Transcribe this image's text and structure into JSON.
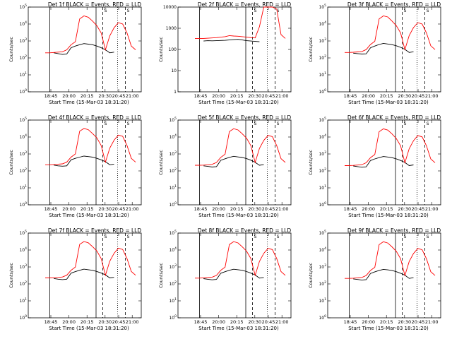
{
  "chart_data": [
    {
      "type": "line",
      "title": "Det 1f BLACK = Events, RED = LLD",
      "xlabel": "Start Time (15-Mar-03 18:31:20)",
      "ylabel": "Counts/sec",
      "x_ticks": [
        "18:45",
        "20:00",
        "20:15",
        "20:30",
        "20:45",
        "21:00"
      ],
      "y_scale": "log",
      "y_ticks": [
        "10^0",
        "10^1",
        "10^2",
        "10^3",
        "10^4",
        "10^5"
      ],
      "ylim": [
        1,
        100000
      ],
      "marker_labels": [
        "S",
        "S"
      ],
      "series": [
        {
          "name": "BLACK = Events",
          "color": "#000000",
          "values": [
            0,
            0,
            200,
            180,
            160,
            170,
            400,
            500,
            600,
            700,
            650,
            600,
            500,
            400,
            300,
            200,
            220,
            0,
            0,
            0,
            0,
            0
          ]
        },
        {
          "name": "RED = LLD",
          "color": "#ff0000",
          "values": [
            200,
            200,
            210,
            220,
            230,
            300,
            600,
            900,
            20000,
            30000,
            25000,
            15000,
            8000,
            3000,
            300,
            2000,
            6000,
            12000,
            10000,
            3000,
            500,
            300
          ]
        }
      ]
    },
    {
      "type": "line",
      "title": "Det 2f BLACK = Events, RED = LLD",
      "xlabel": "Start Time (15-Mar-03 18:31:20)",
      "ylabel": "Counts/sec",
      "x_ticks": [
        "18:45",
        "20:00",
        "20:15",
        "20:30",
        "20:45",
        "21:00"
      ],
      "y_scale": "log",
      "y_ticks": [
        "1",
        "10",
        "100",
        "1000",
        "10000"
      ],
      "ylim": [
        1,
        10000
      ],
      "marker_labels": [
        "S",
        "S"
      ],
      "series": [
        {
          "name": "BLACK = Events",
          "color": "#000000",
          "values": [
            0,
            0,
            250,
            260,
            255,
            260,
            265,
            270,
            280,
            290,
            300,
            280,
            260,
            250,
            240,
            230,
            0,
            0,
            0,
            0,
            0,
            0
          ]
        },
        {
          "name": "RED = LLD",
          "color": "#ff0000",
          "values": [
            330,
            330,
            330,
            340,
            350,
            360,
            380,
            400,
            450,
            430,
            420,
            400,
            380,
            360,
            350,
            1200,
            10000,
            10000,
            10000,
            8000,
            500,
            330
          ]
        }
      ]
    },
    {
      "type": "line",
      "title": "Det 3f BLACK = Events, RED = LLD",
      "xlabel": "Start Time (15-Mar-03 18:31:20)",
      "ylabel": "Counts/sec",
      "x_ticks": [
        "18:45",
        "20:00",
        "20:15",
        "20:30",
        "20:45",
        "21:00"
      ],
      "y_scale": "log",
      "y_ticks": [
        "10^0",
        "10^1",
        "10^2",
        "10^3",
        "10^4",
        "10^5"
      ],
      "ylim": [
        1,
        100000
      ],
      "marker_labels": [
        "S",
        "S"
      ],
      "series": [
        {
          "name": "BLACK = Events",
          "color": "#000000",
          "values": [
            0,
            0,
            190,
            180,
            170,
            175,
            400,
            500,
            620,
            720,
            660,
            610,
            520,
            420,
            320,
            210,
            230,
            0,
            0,
            0,
            0,
            0
          ]
        },
        {
          "name": "RED = LLD",
          "color": "#ff0000",
          "values": [
            210,
            210,
            215,
            225,
            240,
            310,
            620,
            950,
            20000,
            30000,
            26000,
            15000,
            8000,
            3000,
            310,
            2100,
            6200,
            12000,
            10000,
            3000,
            520,
            310
          ]
        }
      ]
    },
    {
      "type": "line",
      "title": "Det 4f BLACK = Events, RED = LLD",
      "xlabel": "Start Time (15-Mar-03 18:31:20)",
      "ylabel": "Counts/sec",
      "x_ticks": [
        "18:45",
        "20:00",
        "20:15",
        "20:30",
        "20:45",
        "21:00"
      ],
      "y_scale": "log",
      "y_ticks": [
        "10^0",
        "10^1",
        "10^2",
        "10^3",
        "10^4",
        "10^5"
      ],
      "ylim": [
        1,
        100000
      ],
      "marker_labels": [
        "S",
        "S"
      ],
      "series": [
        {
          "name": "BLACK = Events",
          "color": "#000000",
          "values": [
            0,
            0,
            220,
            200,
            190,
            200,
            450,
            550,
            650,
            750,
            700,
            650,
            550,
            450,
            350,
            230,
            250,
            0,
            0,
            0,
            0,
            0
          ]
        },
        {
          "name": "RED = LLD",
          "color": "#ff0000",
          "values": [
            230,
            230,
            240,
            250,
            260,
            330,
            650,
            1000,
            22000,
            32000,
            27000,
            16000,
            9000,
            3200,
            330,
            2200,
            6500,
            13000,
            11000,
            3200,
            550,
            330
          ]
        }
      ]
    },
    {
      "type": "line",
      "title": "Det 5f BLACK = Events, RED = LLD",
      "xlabel": "Start Time (15-Mar-03 18:31:20)",
      "ylabel": "Counts/sec",
      "x_ticks": [
        "18:45",
        "20:00",
        "20:15",
        "20:30",
        "20:45",
        "21:00"
      ],
      "y_scale": "log",
      "y_ticks": [
        "10^0",
        "10^1",
        "10^2",
        "10^3",
        "10^4",
        "10^5"
      ],
      "ylim": [
        1,
        100000
      ],
      "marker_labels": [
        "S",
        "S"
      ],
      "series": [
        {
          "name": "BLACK = Events",
          "color": "#000000",
          "values": [
            0,
            0,
            200,
            185,
            170,
            180,
            420,
            520,
            630,
            730,
            670,
            620,
            530,
            430,
            320,
            215,
            235,
            0,
            0,
            0,
            0,
            0
          ]
        },
        {
          "name": "RED = LLD",
          "color": "#ff0000",
          "values": [
            215,
            215,
            220,
            230,
            245,
            315,
            630,
            960,
            21000,
            31000,
            26000,
            15500,
            8500,
            3100,
            315,
            2150,
            6300,
            12500,
            10500,
            3100,
            530,
            315
          ]
        }
      ]
    },
    {
      "type": "line",
      "title": "Det 6f BLACK = Events, RED = LLD",
      "xlabel": "Start Time (15-Mar-03 18:31:20)",
      "ylabel": "Counts/sec",
      "x_ticks": [
        "18:45",
        "20:00",
        "20:15",
        "20:30",
        "20:45",
        "21:00"
      ],
      "y_scale": "log",
      "y_ticks": [
        "10^0",
        "10^1",
        "10^2",
        "10^3",
        "10^4",
        "10^5"
      ],
      "ylim": [
        1,
        100000
      ],
      "marker_labels": [
        "S",
        "S"
      ],
      "series": [
        {
          "name": "BLACK = Events",
          "color": "#000000",
          "values": [
            0,
            0,
            195,
            180,
            165,
            175,
            410,
            510,
            610,
            710,
            660,
            605,
            515,
            415,
            315,
            205,
            225,
            0,
            0,
            0,
            0,
            0
          ]
        },
        {
          "name": "RED = LLD",
          "color": "#ff0000",
          "values": [
            205,
            205,
            212,
            222,
            235,
            305,
            610,
            930,
            20500,
            30500,
            25500,
            15200,
            8200,
            3050,
            305,
            2050,
            6100,
            12200,
            10200,
            3050,
            510,
            305
          ]
        }
      ]
    },
    {
      "type": "line",
      "title": "Det 7f BLACK = Events, RED = LLD",
      "xlabel": "Start Time (15-Mar-03 18:31:20)",
      "ylabel": "Counts/sec",
      "x_ticks": [
        "18:45",
        "20:00",
        "20:15",
        "20:30",
        "20:45",
        "21:00"
      ],
      "y_scale": "log",
      "y_ticks": [
        "10^0",
        "10^1",
        "10^2",
        "10^3",
        "10^4",
        "10^5"
      ],
      "ylim": [
        1,
        100000
      ],
      "marker_labels": [
        "S",
        "S"
      ],
      "series": [
        {
          "name": "BLACK = Events",
          "color": "#000000",
          "values": [
            0,
            0,
            210,
            190,
            180,
            190,
            430,
            530,
            640,
            740,
            690,
            640,
            540,
            440,
            340,
            225,
            245,
            0,
            0,
            0,
            0,
            0
          ]
        },
        {
          "name": "RED = LLD",
          "color": "#ff0000",
          "values": [
            225,
            225,
            232,
            242,
            255,
            325,
            640,
            990,
            21500,
            31500,
            26500,
            15800,
            8800,
            3150,
            325,
            2180,
            6400,
            12800,
            10800,
            3150,
            540,
            325
          ]
        }
      ]
    },
    {
      "type": "line",
      "title": "Det 8f BLACK = Events, RED = LLD",
      "xlabel": "Start Time (15-Mar-03 18:31:20)",
      "ylabel": "Counts/sec",
      "x_ticks": [
        "18:45",
        "20:00",
        "20:15",
        "20:30",
        "20:45",
        "21:00"
      ],
      "y_scale": "log",
      "y_ticks": [
        "10^0",
        "10^1",
        "10^2",
        "10^3",
        "10^4",
        "10^5"
      ],
      "ylim": [
        1,
        100000
      ],
      "marker_labels": [
        "S",
        "S"
      ],
      "series": [
        {
          "name": "BLACK = Events",
          "color": "#000000",
          "values": [
            0,
            0,
            205,
            188,
            175,
            185,
            425,
            525,
            635,
            735,
            685,
            635,
            535,
            435,
            335,
            220,
            240,
            0,
            0,
            0,
            0,
            0
          ]
        },
        {
          "name": "RED = LLD",
          "color": "#ff0000",
          "values": [
            220,
            220,
            228,
            238,
            250,
            320,
            635,
            980,
            21200,
            31200,
            26200,
            15600,
            8600,
            3120,
            320,
            2160,
            6350,
            12600,
            10600,
            3120,
            535,
            320
          ]
        }
      ]
    },
    {
      "type": "line",
      "title": "Det 9f BLACK = Events, RED = LLD",
      "xlabel": "Start Time (15-Mar-03 18:31:20)",
      "ylabel": "Counts/sec",
      "x_ticks": [
        "18:45",
        "20:00",
        "20:15",
        "20:30",
        "20:45",
        "21:00"
      ],
      "y_scale": "log",
      "y_ticks": [
        "10^0",
        "10^1",
        "10^2",
        "10^3",
        "10^4",
        "10^5"
      ],
      "ylim": [
        1,
        100000
      ],
      "marker_labels": [
        "S",
        "S"
      ],
      "series": [
        {
          "name": "BLACK = Events",
          "color": "#000000",
          "values": [
            0,
            0,
            198,
            183,
            168,
            178,
            415,
            515,
            625,
            725,
            675,
            625,
            525,
            425,
            325,
            212,
            232,
            0,
            0,
            0,
            0,
            0
          ]
        },
        {
          "name": "RED = LLD",
          "color": "#ff0000",
          "values": [
            212,
            212,
            218,
            228,
            242,
            312,
            625,
            955,
            20800,
            30800,
            25800,
            15400,
            8400,
            3080,
            312,
            2120,
            6250,
            12400,
            10400,
            3080,
            525,
            312
          ]
        }
      ]
    }
  ]
}
